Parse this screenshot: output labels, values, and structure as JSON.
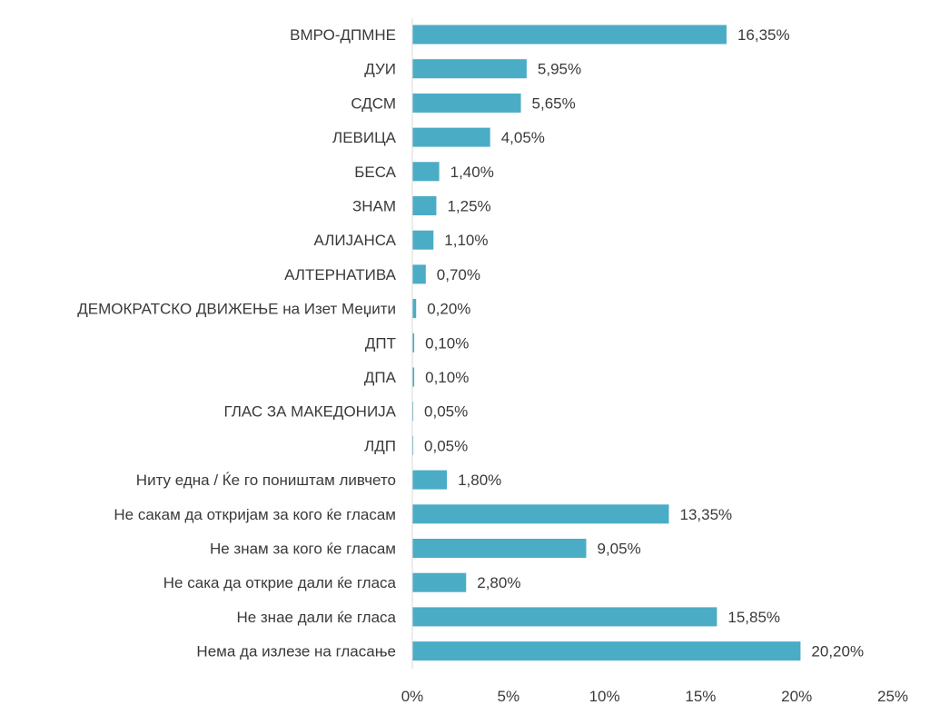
{
  "chart_data": {
    "type": "bar",
    "orientation": "horizontal",
    "categories": [
      "ВМРО-ДПМНЕ",
      "ДУИ",
      "СДСМ",
      "ЛЕВИЦА",
      "БЕСА",
      "ЗНАМ",
      "АЛИЈАНСА",
      "АЛТЕРНАТИВА",
      "ДЕМОКРАТСКО ДВИЖЕЊЕ на Изет Меџити",
      "ДПТ",
      "ДПА",
      "ГЛАС ЗА МАКЕДОНИЈА",
      "ЛДП",
      "Ниту една / Ќе го поништам ливчето",
      "Не сакам да откријам за кого ќе гласам",
      "Не знам за кого ќе гласам",
      "Не сака да открие дали ќе гласа",
      "Не знае дали ќе гласа",
      "Нема да излезе на гласање"
    ],
    "values": [
      16.35,
      5.95,
      5.65,
      4.05,
      1.4,
      1.25,
      1.1,
      0.7,
      0.2,
      0.1,
      0.1,
      0.05,
      0.05,
      1.8,
      13.35,
      9.05,
      2.8,
      15.85,
      20.2
    ],
    "value_labels": [
      "16,35%",
      "5,95%",
      "5,65%",
      "4,05%",
      "1,40%",
      "1,25%",
      "1,10%",
      "0,70%",
      "0,20%",
      "0,10%",
      "0,10%",
      "0,05%",
      "0,05%",
      "1,80%",
      "13,35%",
      "9,05%",
      "2,80%",
      "15,85%",
      "20,20%"
    ],
    "xlim": [
      0,
      25
    ],
    "xticks": [
      0,
      5,
      10,
      15,
      20,
      25
    ],
    "xtick_labels": [
      "0%",
      "5%",
      "10%",
      "15%",
      "20%",
      "25%"
    ],
    "grid": false,
    "legend": "none",
    "title": "",
    "xlabel": "",
    "ylabel": ""
  },
  "colors": {
    "bar": "#4bacc6",
    "axis": "#d9d9d9",
    "text": "#3a3a3a"
  }
}
